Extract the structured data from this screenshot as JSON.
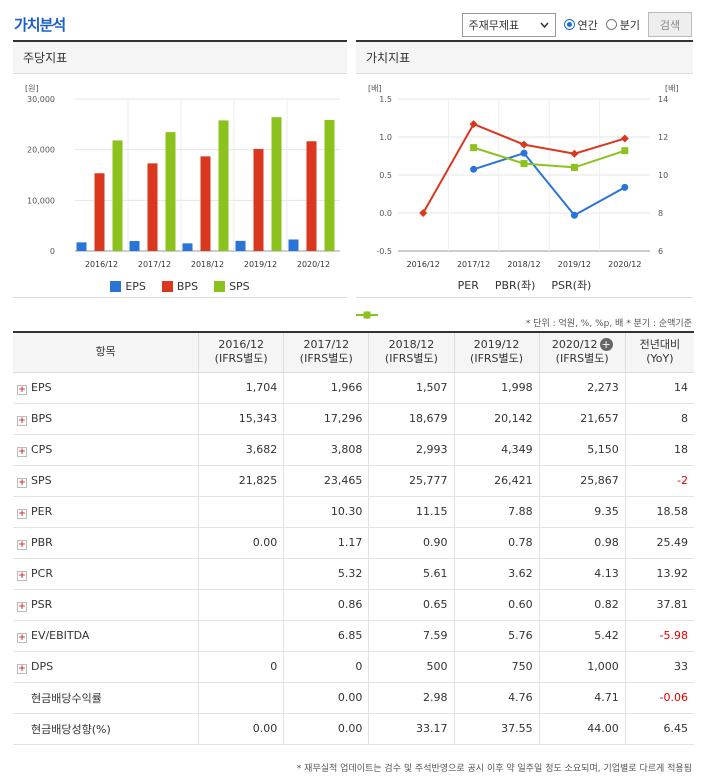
{
  "title": "가치분석",
  "controls": {
    "select_value": "주재무제표",
    "radio_annual": "연간",
    "radio_quarter": "분기",
    "search_label": "검색"
  },
  "charts": {
    "left": {
      "header": "주당지표",
      "legend": [
        "EPS",
        "BPS",
        "SPS"
      ]
    },
    "right": {
      "header": "가치지표",
      "legend": [
        "PER",
        "PBR(좌)",
        "PSR(좌)"
      ]
    }
  },
  "chart_data": [
    {
      "type": "bar",
      "title": "주당지표",
      "categories": [
        "2016/12",
        "2017/12",
        "2018/12",
        "2019/12",
        "2020/12"
      ],
      "ylabel": "[원]",
      "ylim": [
        0,
        30000
      ],
      "yticks": [
        "30,000",
        "20,000",
        "10,000",
        "0"
      ],
      "series": [
        {
          "name": "EPS",
          "color": "#2a74d8",
          "values": [
            1704,
            1966,
            1507,
            1998,
            2273
          ]
        },
        {
          "name": "BPS",
          "color": "#d9381e",
          "values": [
            15343,
            17296,
            18679,
            20142,
            21657
          ]
        },
        {
          "name": "SPS",
          "color": "#8cc21e",
          "values": [
            21825,
            23465,
            25777,
            26421,
            25867
          ]
        }
      ],
      "grid": true,
      "legend": "bottom"
    },
    {
      "type": "line",
      "title": "가치지표",
      "categories": [
        "2016/12",
        "2017/12",
        "2018/12",
        "2019/12",
        "2020/12"
      ],
      "ylabel_left": "[배]",
      "ylabel_right": "[배]",
      "ylim_left": [
        -0.5,
        1.5
      ],
      "ylim_right": [
        6,
        14
      ],
      "yticks_left": [
        "1.5",
        "1.0",
        "0.5",
        "0.0",
        "-0.5"
      ],
      "yticks_right": [
        "14",
        "12",
        "10",
        "8",
        "6"
      ],
      "series": [
        {
          "name": "PER",
          "axis": "right",
          "color": "#2a74d8",
          "values": [
            null,
            10.3,
            11.15,
            7.88,
            9.35
          ]
        },
        {
          "name": "PBR(좌)",
          "axis": "left",
          "color": "#d9381e",
          "values": [
            0.0,
            1.17,
            0.9,
            0.78,
            0.98
          ]
        },
        {
          "name": "PSR(좌)",
          "axis": "left",
          "color": "#8cc21e",
          "values": [
            null,
            0.86,
            0.65,
            0.6,
            0.82
          ]
        }
      ],
      "grid": true,
      "legend": "bottom"
    }
  ],
  "unit_note": "* 단위 : 억원, %, %p, 배   * 분기 : 순액기준",
  "table": {
    "headers": [
      "항목",
      "2016/12\n(IFRS별도)",
      "2017/12\n(IFRS별도)",
      "2018/12\n(IFRS별도)",
      "2019/12\n(IFRS별도)",
      "2020/12\n(IFRS별도)",
      "전년대비\n(YoY)"
    ],
    "rows": [
      {
        "label": "EPS",
        "expand": true,
        "values": [
          "1,704",
          "1,966",
          "1,507",
          "1,998",
          "2,273"
        ],
        "yoy": "14"
      },
      {
        "label": "BPS",
        "expand": true,
        "values": [
          "15,343",
          "17,296",
          "18,679",
          "20,142",
          "21,657"
        ],
        "yoy": "8"
      },
      {
        "label": "CPS",
        "expand": true,
        "values": [
          "3,682",
          "3,808",
          "2,993",
          "4,349",
          "5,150"
        ],
        "yoy": "18"
      },
      {
        "label": "SPS",
        "expand": true,
        "values": [
          "21,825",
          "23,465",
          "25,777",
          "26,421",
          "25,867"
        ],
        "yoy": "-2"
      },
      {
        "label": "PER",
        "expand": true,
        "values": [
          "",
          "10.30",
          "11.15",
          "7.88",
          "9.35"
        ],
        "yoy": "18.58"
      },
      {
        "label": "PBR",
        "expand": true,
        "values": [
          "0.00",
          "1.17",
          "0.90",
          "0.78",
          "0.98"
        ],
        "yoy": "25.49"
      },
      {
        "label": "PCR",
        "expand": true,
        "values": [
          "",
          "5.32",
          "5.61",
          "3.62",
          "4.13"
        ],
        "yoy": "13.92"
      },
      {
        "label": "PSR",
        "expand": true,
        "values": [
          "",
          "0.86",
          "0.65",
          "0.60",
          "0.82"
        ],
        "yoy": "37.81"
      },
      {
        "label": "EV/EBITDA",
        "expand": true,
        "values": [
          "",
          "6.85",
          "7.59",
          "5.76",
          "5.42"
        ],
        "yoy": "-5.98"
      },
      {
        "label": "DPS",
        "expand": true,
        "values": [
          "0",
          "0",
          "500",
          "750",
          "1,000"
        ],
        "yoy": "33"
      },
      {
        "label": "현금배당수익률",
        "expand": false,
        "values": [
          "",
          "0.00",
          "2.98",
          "4.76",
          "4.71"
        ],
        "yoy": "-0.06"
      },
      {
        "label": "현금배당성향(%)",
        "expand": false,
        "values": [
          "0.00",
          "0.00",
          "33.17",
          "37.55",
          "44.00"
        ],
        "yoy": "6.45"
      }
    ]
  },
  "footnote": "* 재무실적 업데이트는 검수 및 주석반영으로 공시 이후 약 일주일 정도 소요되며, 기업별로 다르게 적용됨"
}
